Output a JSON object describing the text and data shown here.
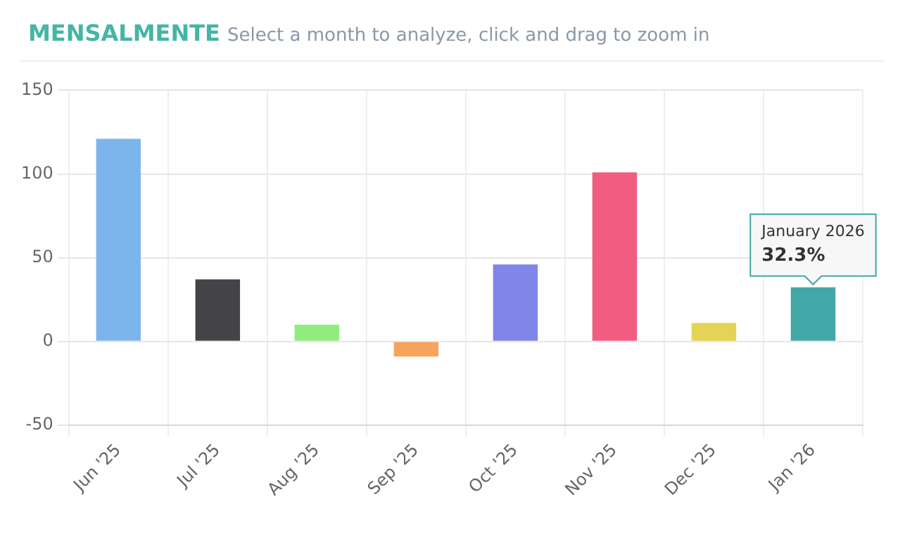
{
  "chart_data": {
    "type": "bar",
    "title": "MENSALMENTE",
    "subtitle": "Select a month to analyze, click and drag to zoom in",
    "categories": [
      "Jun '25",
      "Jul '25",
      "Aug '25",
      "Sep '25",
      "Oct '25",
      "Nov '25",
      "Dec '25",
      "Jan '26"
    ],
    "values": [
      121,
      37,
      10,
      -9,
      46,
      101,
      11,
      32.3
    ],
    "colors": [
      "#7cb5ec",
      "#434348",
      "#90ed7d",
      "#f7a35c",
      "#8085e9",
      "#f15c80",
      "#e4d354",
      "#43a7a7"
    ],
    "ylim": [
      -50,
      150
    ],
    "yticks": [
      -50,
      0,
      50,
      100,
      150
    ],
    "grid": true,
    "legend": false,
    "annotations": [
      "January 2026",
      "32.3%"
    ]
  }
}
